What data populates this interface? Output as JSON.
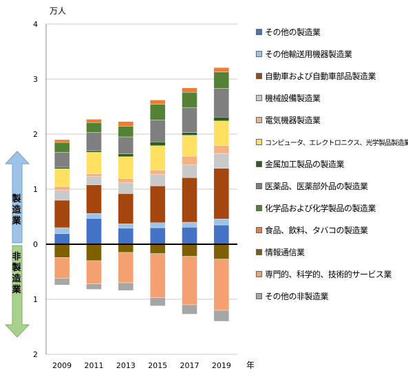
{
  "chart_data": {
    "type": "bar",
    "stacked": true,
    "diverging": true,
    "unit_label": "万人",
    "xlabel": "年",
    "categories": [
      "2009",
      "2011",
      "2013",
      "2015",
      "2017",
      "2019"
    ],
    "y_ticks_up": [
      "0",
      "1",
      "2",
      "3",
      "4"
    ],
    "y_ticks_down": [
      "1",
      "2"
    ],
    "ylim": [
      -2,
      4
    ],
    "grid": "horizontal",
    "legend": "right",
    "group_labels": {
      "upper": "製造業",
      "lower": "非製造業"
    },
    "series": [
      {
        "name": "その他の製造業",
        "group": "upper",
        "color": "#4472C4",
        "values": [
          0.19,
          0.47,
          0.29,
          0.3,
          0.31,
          0.35
        ]
      },
      {
        "name": "その他輸送用機器製造業",
        "group": "upper",
        "color": "#9DC3E6",
        "values": [
          0.11,
          0.09,
          0.08,
          0.09,
          0.09,
          0.11
        ]
      },
      {
        "name": "自動車および自動車部品製造業",
        "group": "upper",
        "color": "#A5460F",
        "values": [
          0.5,
          0.52,
          0.55,
          0.67,
          0.81,
          0.92
        ]
      },
      {
        "name": "機械設備製造業",
        "group": "upper",
        "color": "#C9C9C9",
        "values": [
          0.18,
          0.15,
          0.2,
          0.21,
          0.23,
          0.27
        ]
      },
      {
        "name": "電気機器製造業",
        "group": "upper",
        "color": "#F4B183",
        "values": [
          0.07,
          0.05,
          0.07,
          0.08,
          0.16,
          0.14
        ]
      },
      {
        "name": "コンピュータ、エレクトロニクス、光学製品製造業",
        "group": "upper",
        "color": "#FFE060",
        "values": [
          0.32,
          0.39,
          0.4,
          0.44,
          0.38,
          0.45
        ]
      },
      {
        "name": "金属加工製品の製造業",
        "group": "upper",
        "color": "#2E5E1E",
        "values": [
          0.03,
          0.03,
          0.05,
          0.07,
          0.05,
          0.07
        ]
      },
      {
        "name": "医薬品、医薬部外品の製造業",
        "group": "upper",
        "color": "#7F7F7F",
        "values": [
          0.27,
          0.33,
          0.31,
          0.4,
          0.45,
          0.52
        ]
      },
      {
        "name": "化学品および化学製品の製造業",
        "group": "upper",
        "color": "#548235",
        "values": [
          0.18,
          0.18,
          0.19,
          0.28,
          0.28,
          0.3
        ]
      },
      {
        "name": "食品、飲料、タバコの製造業",
        "group": "upper",
        "color": "#ED7D31",
        "values": [
          0.05,
          0.06,
          0.09,
          0.08,
          0.08,
          0.08
        ]
      },
      {
        "name": "情報通信業",
        "group": "lower",
        "color": "#7F6000",
        "values": [
          0.24,
          0.3,
          0.15,
          0.17,
          0.22,
          0.27
        ]
      },
      {
        "name": "専門的、科学的、技術的サービス業",
        "group": "lower",
        "color": "#F4A070",
        "values": [
          0.38,
          0.42,
          0.55,
          0.8,
          0.88,
          0.93
        ]
      },
      {
        "name": "その他の非製造業",
        "group": "lower",
        "color": "#A6A6A6",
        "values": [
          0.12,
          0.1,
          0.14,
          0.15,
          0.17,
          0.2
        ]
      }
    ]
  }
}
